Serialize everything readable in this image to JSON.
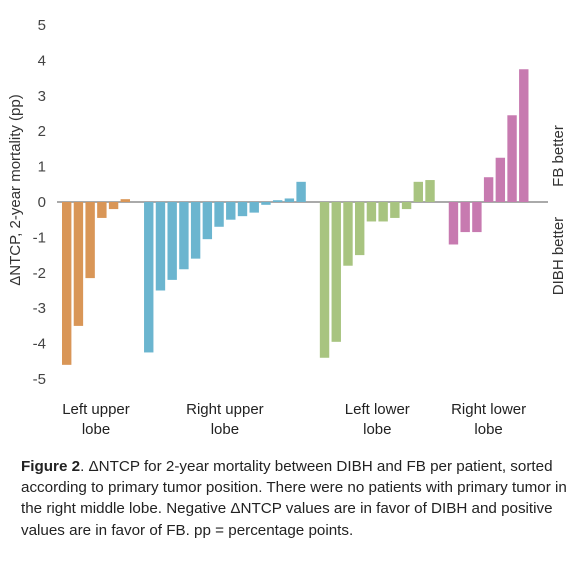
{
  "chart_data": {
    "type": "bar",
    "ylabel": "ΔNTCP, 2-year mortality (pp)",
    "ylim": [
      -5,
      5
    ],
    "yticks": [
      5,
      4,
      3,
      2,
      1,
      0,
      -1,
      -2,
      -3,
      -4,
      -5
    ],
    "grid": false,
    "right_labels": {
      "upper": "FB better",
      "lower": "DIBH better"
    },
    "groups": [
      {
        "name": "Left upper lobe",
        "label_lines": [
          "Left upper",
          "lobe"
        ],
        "color": "#d99657",
        "values": [
          -4.6,
          -3.5,
          -2.15,
          -0.45,
          -0.2,
          0.08
        ]
      },
      {
        "name": "Right upper lobe",
        "label_lines": [
          "Right upper",
          "lobe"
        ],
        "color": "#6bb5cf",
        "values": [
          -4.25,
          -2.5,
          -2.2,
          -1.9,
          -1.6,
          -1.05,
          -0.7,
          -0.5,
          -0.4,
          -0.3,
          -0.08,
          0.05,
          0.1,
          0.57
        ]
      },
      {
        "name": "Left lower lobe",
        "label_lines": [
          "Left lower",
          "lobe"
        ],
        "color": "#a8c480",
        "values": [
          -4.4,
          -3.95,
          -1.8,
          -1.5,
          -0.55,
          -0.55,
          -0.45,
          -0.2,
          0.57,
          0.62
        ]
      },
      {
        "name": "Right lower lobe",
        "label_lines": [
          "Right lower",
          "lobe"
        ],
        "color": "#c77ab0",
        "values": [
          -1.2,
          -0.85,
          -0.85,
          0.7,
          1.25,
          2.45,
          3.75
        ]
      }
    ]
  },
  "caption": {
    "label": "Figure 2",
    "text": ". ΔNTCP for 2-year mortality between DIBH and FB per patient, sorted according to primary tumor position. There were no patients with primary tumor in the right middle lobe. Negative ΔNTCP values are in favor of DIBH and positive values are in favor of FB. pp = percentage points."
  }
}
